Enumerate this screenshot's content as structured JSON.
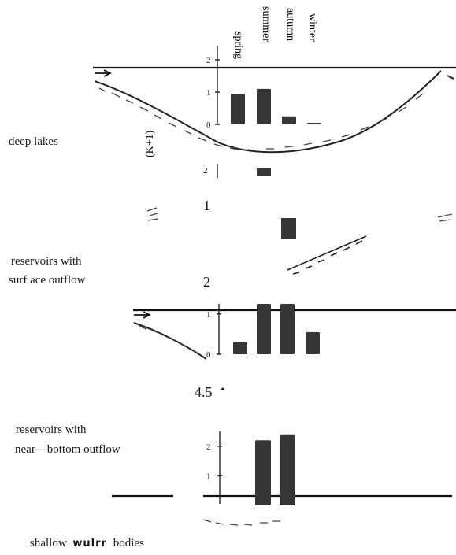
{
  "row_labels": {
    "deep_lakes": "deep lakes",
    "reservoirs_surface_line1": "reservoirs with",
    "reservoirs_surface_line2": "surf ace outflow",
    "reservoirs_bottom_line1": "reservoirs with",
    "reservoirs_bottom_line2": "near—bottom outflow",
    "shallow_prefix": "shallow",
    "shallow_word": "wulrr",
    "shallow_suffix": "bodies"
  },
  "scale_numbers": {
    "n1": "1",
    "n2": "2",
    "n45": "4.5"
  },
  "axis_title": "(K+1)",
  "seasons": [
    "spring",
    "summer",
    "autumn",
    "winter"
  ],
  "chart_data": [
    {
      "type": "bar",
      "row": "deep lakes",
      "categories": [
        "spring",
        "summer",
        "autumn",
        "winter"
      ],
      "values": [
        0.95,
        1.1,
        0.25,
        0.03
      ],
      "yticks": [
        "0",
        "1",
        "2"
      ],
      "ylim": [
        0,
        2
      ]
    },
    {
      "type": "bar",
      "row": "reservoirs with surf ace outflow",
      "categories": [
        "spring",
        "summer",
        "autumn",
        "winter"
      ],
      "values": [
        0.3,
        1.25,
        1.25,
        0.55
      ],
      "yticks": [
        "0",
        "1"
      ],
      "ylim": [
        0,
        1.25
      ]
    },
    {
      "type": "bar",
      "row": "reservoirs with near—bottom outflow",
      "categories": [
        "spring",
        "summer",
        "autumn",
        "winter"
      ],
      "values": [
        0,
        2.2,
        2.4,
        0
      ],
      "yticks": [
        "2",
        "1"
      ],
      "ylim": [
        0,
        2.5
      ]
    }
  ]
}
